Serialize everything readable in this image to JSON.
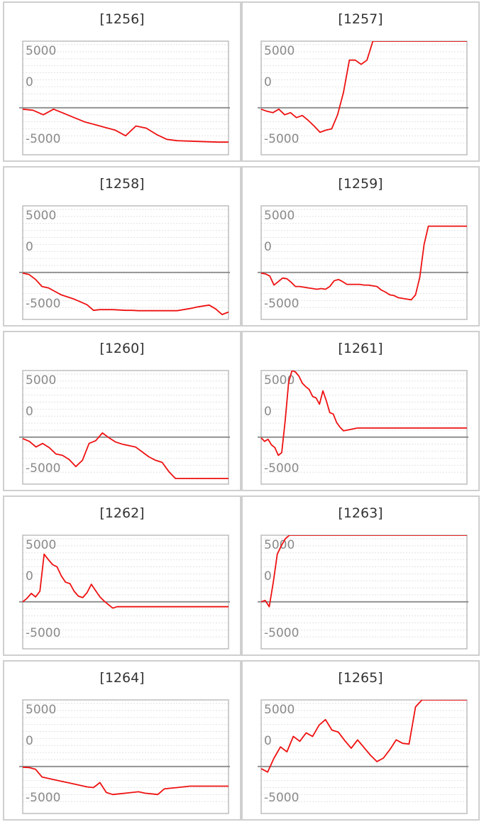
{
  "colors": {
    "line": "#ee1111",
    "frame": "#bdbdbd",
    "zero_line": "#8c8c8c",
    "grid": "#e2e2e2",
    "panel_border": "#cfcfcf",
    "tick_text": "#8a8a8a"
  },
  "chart_data": [
    {
      "type": "line",
      "title": "[1256]",
      "ylim": [
        -6700,
        9500
      ],
      "yticks": [
        5000,
        0,
        -5000
      ],
      "grid": true,
      "x": [
        0,
        1,
        2,
        3,
        4,
        5,
        6,
        7,
        8,
        9,
        10,
        11,
        12,
        13,
        14,
        15,
        16,
        17,
        18,
        19,
        20
      ],
      "values": [
        -200,
        -350,
        -1000,
        -200,
        -800,
        -1400,
        -2000,
        -2400,
        -2800,
        -3200,
        -4000,
        -2600,
        -2900,
        -3800,
        -4500,
        -4700,
        -4750,
        -4800,
        -4850,
        -4900,
        -4900
      ]
    },
    {
      "type": "line",
      "title": "[1257]",
      "ylim": [
        -6700,
        9500
      ],
      "yticks": [
        5000,
        0,
        -5000
      ],
      "grid": true,
      "x": [
        0,
        1,
        2,
        3,
        4,
        5,
        6,
        7,
        8,
        9,
        10,
        11,
        12,
        13,
        14,
        15,
        16,
        17,
        18,
        19,
        20,
        21,
        22,
        23,
        24,
        25,
        26,
        27,
        28,
        29,
        30,
        31,
        32,
        33,
        34,
        35
      ],
      "values": [
        -200,
        -500,
        -700,
        -200,
        -1000,
        -700,
        -1400,
        -1100,
        -1800,
        -2600,
        -3500,
        -3200,
        -3000,
        -1000,
        2200,
        6800,
        6800,
        6200,
        6800,
        9500,
        9500,
        9500,
        9500,
        9500,
        9500,
        9500,
        9500,
        9500,
        9500,
        9500,
        9500,
        9500,
        9500,
        9500,
        9500,
        9500
      ]
    },
    {
      "type": "line",
      "title": "[1258]",
      "ylim": [
        -6700,
        9500
      ],
      "yticks": [
        5000,
        0,
        -5000
      ],
      "grid": true,
      "x": [
        0,
        1,
        2,
        3,
        4,
        5,
        6,
        7,
        8,
        9,
        10,
        11,
        12,
        13,
        14,
        15,
        16,
        17,
        18,
        19,
        20,
        21,
        22,
        23,
        24,
        25,
        26,
        27,
        28,
        29,
        30,
        31,
        32
      ],
      "values": [
        -100,
        -300,
        -1000,
        -2000,
        -2200,
        -2700,
        -3200,
        -3500,
        -3800,
        -4200,
        -4600,
        -5400,
        -5300,
        -5300,
        -5300,
        -5350,
        -5400,
        -5400,
        -5450,
        -5450,
        -5450,
        -5450,
        -5450,
        -5450,
        -5450,
        -5300,
        -5150,
        -4950,
        -4800,
        -4650,
        -5200,
        -6000,
        -5650
      ]
    },
    {
      "type": "line",
      "title": "[1259]",
      "ylim": [
        -6700,
        9500
      ],
      "yticks": [
        5000,
        0,
        -5000
      ],
      "grid": true,
      "x": [
        0,
        1,
        2,
        3,
        4,
        5,
        6,
        7,
        8,
        9,
        10,
        11,
        12,
        13,
        14,
        15,
        16,
        17,
        18,
        19,
        20,
        21,
        22,
        23,
        24,
        25,
        26,
        27,
        28,
        29,
        30,
        31,
        32,
        33,
        34,
        35,
        36,
        37,
        38,
        39,
        40,
        41,
        42,
        43,
        44,
        45,
        46,
        47,
        48
      ],
      "values": [
        -100,
        -200,
        -500,
        -1800,
        -1300,
        -800,
        -900,
        -1400,
        -2000,
        -2000,
        -2100,
        -2200,
        -2300,
        -2400,
        -2300,
        -2400,
        -2000,
        -1200,
        -1000,
        -1300,
        -1700,
        -1700,
        -1700,
        -1700,
        -1800,
        -1800,
        -1900,
        -2000,
        -2500,
        -2800,
        -3200,
        -3300,
        -3600,
        -3700,
        -3800,
        -3900,
        -3200,
        -700,
        4000,
        6600,
        6600,
        6600,
        6600,
        6600,
        6600,
        6600,
        6600,
        6600,
        6600
      ]
    },
    {
      "type": "line",
      "title": "[1260]",
      "ylim": [
        -6700,
        9500
      ],
      "yticks": [
        5000,
        0,
        -5000
      ],
      "grid": true,
      "x": [
        0,
        1,
        2,
        3,
        4,
        5,
        6,
        7,
        8,
        9,
        10,
        11,
        12,
        13,
        14,
        15,
        16,
        17,
        18,
        19,
        20,
        21,
        22,
        23,
        24,
        25,
        26,
        27,
        28,
        29,
        30,
        31
      ],
      "values": [
        -200,
        -600,
        -1400,
        -900,
        -1500,
        -2400,
        -2600,
        -3200,
        -4200,
        -3300,
        -900,
        -500,
        600,
        -100,
        -700,
        -1000,
        -1200,
        -1400,
        -2100,
        -2800,
        -3300,
        -3600,
        -4900,
        -5900,
        -5900,
        -5900,
        -5900,
        -5900,
        -5900,
        -5900,
        -5900,
        -5900
      ]
    },
    {
      "type": "line",
      "title": "[1261]",
      "ylim": [
        -6700,
        9500
      ],
      "yticks": [
        5000,
        0,
        -5000
      ],
      "grid": true,
      "x": [
        0,
        1,
        2,
        3,
        4,
        5,
        6,
        7,
        8,
        9,
        10,
        11,
        12,
        13,
        14,
        15,
        16,
        17,
        18,
        19,
        20,
        21,
        22,
        23,
        24,
        25,
        26,
        27,
        28,
        29,
        30,
        31,
        32,
        33,
        34,
        35,
        36,
        37,
        38,
        39,
        40,
        41,
        42,
        43,
        44,
        45,
        46,
        47,
        48,
        49,
        50,
        51,
        52,
        53,
        54,
        55,
        56,
        57,
        58,
        59,
        60
      ],
      "values": [
        -100,
        -600,
        -300,
        -1100,
        -1500,
        -2600,
        -2200,
        2300,
        7800,
        9500,
        9300,
        8700,
        7700,
        7200,
        6800,
        5800,
        5600,
        4700,
        6600,
        5200,
        3500,
        3300,
        2100,
        1400,
        900,
        1000,
        1100,
        1200,
        1300,
        1300,
        1300,
        1300,
        1300,
        1300,
        1300,
        1300,
        1300,
        1300,
        1300,
        1300,
        1300,
        1300,
        1300,
        1300,
        1300,
        1300,
        1300,
        1300,
        1300,
        1300,
        1300,
        1300,
        1300,
        1300,
        1300,
        1300,
        1300,
        1300,
        1300,
        1300,
        1300
      ]
    },
    {
      "type": "line",
      "title": "[1262]",
      "ylim": [
        -6700,
        9500
      ],
      "yticks": [
        5000,
        0,
        -5000
      ],
      "grid": true,
      "x": [
        0,
        1,
        2,
        3,
        4,
        5,
        6,
        7,
        8,
        9,
        10,
        11,
        12,
        13,
        14,
        15,
        16,
        17,
        18,
        19,
        20,
        21,
        22,
        23,
        24,
        25,
        26,
        27,
        28,
        29,
        30,
        31,
        32,
        33,
        34,
        35,
        36,
        37,
        38,
        39,
        40,
        41,
        42,
        43,
        44,
        45,
        46,
        47,
        48
      ],
      "values": [
        0,
        500,
        1200,
        700,
        1500,
        6800,
        6000,
        5300,
        5000,
        3700,
        2800,
        2600,
        1500,
        800,
        600,
        1300,
        2500,
        1600,
        700,
        100,
        -400,
        -900,
        -700,
        -700,
        -700,
        -700,
        -700,
        -700,
        -700,
        -700,
        -700,
        -700,
        -700,
        -700,
        -700,
        -700,
        -700,
        -700,
        -700,
        -700,
        -700,
        -700,
        -700,
        -700,
        -700,
        -700,
        -700,
        -700,
        -700
      ]
    },
    {
      "type": "line",
      "title": "[1263]",
      "ylim": [
        -6700,
        9500
      ],
      "yticks": [
        5000,
        0,
        -5000
      ],
      "grid": true,
      "x": [
        0,
        1,
        2,
        3,
        4,
        5,
        6,
        7,
        8,
        9,
        10,
        11,
        12,
        13,
        14,
        15,
        16,
        17,
        18,
        19,
        20,
        21,
        22,
        23,
        24,
        25,
        26,
        27,
        28,
        29,
        30,
        31,
        32,
        33,
        34,
        35,
        36,
        37,
        38,
        39,
        40,
        41,
        42,
        43,
        44,
        45,
        46,
        47,
        48,
        49,
        50,
        51
      ],
      "values": [
        0,
        200,
        -700,
        2800,
        6800,
        8000,
        9000,
        9500,
        9500,
        9500,
        9500,
        9500,
        9500,
        9500,
        9500,
        9500,
        9500,
        9500,
        9500,
        9500,
        9500,
        9500,
        9500,
        9500,
        9500,
        9500,
        9500,
        9500,
        9500,
        9500,
        9500,
        9500,
        9500,
        9500,
        9500,
        9500,
        9500,
        9500,
        9500,
        9500,
        9500,
        9500,
        9500,
        9500,
        9500,
        9500,
        9500,
        9500,
        9500,
        9500,
        9500,
        9500
      ]
    },
    {
      "type": "line",
      "title": "[1264]",
      "ylim": [
        -6700,
        9500
      ],
      "yticks": [
        5000,
        0,
        -5000
      ],
      "grid": true,
      "x": [
        0,
        1,
        2,
        3,
        4,
        5,
        6,
        7,
        8,
        9,
        10,
        11,
        12,
        13,
        14,
        15,
        16,
        17,
        18,
        19,
        20,
        21,
        22,
        23,
        24,
        25,
        26,
        27,
        28,
        29,
        30,
        31,
        32
      ],
      "values": [
        -100,
        -150,
        -400,
        -1500,
        -1700,
        -1900,
        -2100,
        -2300,
        -2500,
        -2700,
        -2900,
        -3000,
        -2300,
        -3700,
        -4000,
        -3900,
        -3800,
        -3700,
        -3600,
        -3800,
        -3900,
        -4000,
        -3200,
        -3100,
        -3000,
        -2900,
        -2800,
        -2800,
        -2800,
        -2800,
        -2800,
        -2800,
        -2800
      ]
    },
    {
      "type": "line",
      "title": "[1265]",
      "ylim": [
        -6700,
        9500
      ],
      "yticks": [
        5000,
        0,
        -5000
      ],
      "grid": true,
      "x": [
        0,
        1,
        2,
        3,
        4,
        5,
        6,
        7,
        8,
        9,
        10,
        11,
        12,
        13,
        14,
        15,
        16,
        17,
        18,
        19,
        20,
        21,
        22,
        23,
        24,
        25,
        26,
        27,
        28,
        29,
        30,
        31,
        32
      ],
      "values": [
        -300,
        -800,
        1200,
        2800,
        2100,
        4300,
        3600,
        4800,
        4300,
        5900,
        6700,
        5200,
        4900,
        3700,
        2600,
        3800,
        2700,
        1600,
        700,
        1200,
        2400,
        3800,
        3300,
        3200,
        8500,
        9500,
        9500,
        9500,
        9500,
        9500,
        9500,
        9500,
        9500
      ]
    }
  ]
}
